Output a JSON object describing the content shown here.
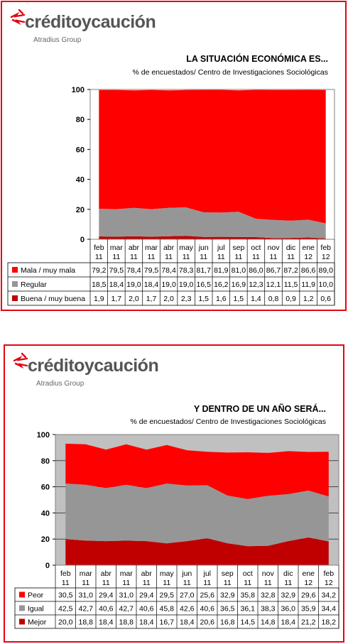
{
  "brand": {
    "name": "créditoycaución",
    "group": "Atradius Group",
    "colors": {
      "accent": "#e30613",
      "text": "#555555"
    }
  },
  "charts": [
    {
      "title": "LA SITUACIÓN ECONÓMICA ES...",
      "subtitle": "% de encuestados/ Centro de Investigaciones Sociológicas"
    },
    {
      "title": "Y DENTRO DE UN AÑO SERÁ...",
      "subtitle": "% de encuestados/ Centro de Investigaciones Sociológicas"
    }
  ],
  "chart_data": [
    {
      "type": "area",
      "stacked": true,
      "title": "LA SITUACIÓN ECONÓMICA ES...",
      "subtitle": "% de encuestados/ Centro de Investigaciones Sociológicas",
      "categories": [
        [
          "feb",
          "11"
        ],
        [
          "mar",
          "11"
        ],
        [
          "abr",
          "11"
        ],
        [
          "mar",
          "11"
        ],
        [
          "abr",
          "11"
        ],
        [
          "may",
          "11"
        ],
        [
          "jun",
          "11"
        ],
        [
          "jul",
          "11"
        ],
        [
          "sep",
          "11"
        ],
        [
          "oct",
          "11"
        ],
        [
          "nov",
          "11"
        ],
        [
          "dic",
          "11"
        ],
        [
          "ene",
          "12"
        ],
        [
          "feb",
          "12"
        ]
      ],
      "series": [
        {
          "name": "Mala / muy mala",
          "color": "#ff0000",
          "values": [
            79.2,
            79.5,
            78.4,
            79.5,
            78.4,
            78.3,
            81.7,
            81.9,
            81.0,
            86.0,
            86.7,
            87.2,
            86.6,
            89.0
          ],
          "labels": [
            "79,2",
            "79,5",
            "78,4",
            "79,5",
            "78,4",
            "78,3",
            "81,7",
            "81,9",
            "81,0",
            "86,0",
            "86,7",
            "87,2",
            "86,6",
            "89,0"
          ]
        },
        {
          "name": "Regular",
          "color": "#969696",
          "values": [
            18.5,
            18.4,
            19.0,
            18.4,
            19.0,
            19.0,
            16.5,
            16.2,
            16.9,
            12.3,
            12.1,
            11.5,
            11.9,
            10.0
          ],
          "labels": [
            "18,5",
            "18,4",
            "19,0",
            "18,4",
            "19,0",
            "19,0",
            "16,5",
            "16,2",
            "16,9",
            "12,3",
            "12,1",
            "11,5",
            "11,9",
            "10,0"
          ]
        },
        {
          "name": "Buena / muy buena",
          "color": "#c00000",
          "values": [
            1.9,
            1.7,
            2.0,
            1.7,
            2.0,
            2.3,
            1.5,
            1.6,
            1.5,
            1.4,
            0.8,
            0.9,
            1.2,
            0.6
          ],
          "labels": [
            "1,9",
            "1,7",
            "2,0",
            "1,7",
            "2,0",
            "2,3",
            "1,5",
            "1,6",
            "1,5",
            "1,4",
            "0,8",
            "0,9",
            "1,2",
            "0,6"
          ]
        }
      ],
      "ylim": [
        0,
        100
      ],
      "yticks": [
        0,
        20,
        40,
        60,
        80,
        100
      ],
      "ytick_labels": [
        "0",
        "20",
        "40",
        "60",
        "80",
        "100"
      ],
      "grid": false,
      "legend": "data-table"
    },
    {
      "type": "area",
      "stacked": true,
      "title": "Y DENTRO DE UN AÑO SERÁ...",
      "subtitle": "% de encuestados/ Centro de Investigaciones Sociológicas",
      "categories": [
        [
          "feb",
          "11"
        ],
        [
          "mar",
          "11"
        ],
        [
          "abr",
          "11"
        ],
        [
          "mar",
          "11"
        ],
        [
          "abr",
          "11"
        ],
        [
          "may",
          "11"
        ],
        [
          "jun",
          "11"
        ],
        [
          "jul",
          "11"
        ],
        [
          "sep",
          "11"
        ],
        [
          "oct",
          "11"
        ],
        [
          "nov",
          "11"
        ],
        [
          "dic",
          "11"
        ],
        [
          "ene",
          "12"
        ],
        [
          "feb",
          "12"
        ]
      ],
      "series": [
        {
          "name": "Peor",
          "color": "#ff0000",
          "values": [
            30.5,
            31.0,
            29.4,
            31.0,
            29.4,
            29.5,
            27.0,
            25.6,
            32.9,
            35.8,
            32.8,
            32.9,
            29.6,
            34.2
          ],
          "labels": [
            "30,5",
            "31,0",
            "29,4",
            "31,0",
            "29,4",
            "29,5",
            "27,0",
            "25,6",
            "32,9",
            "35,8",
            "32,8",
            "32,9",
            "29,6",
            "34,2"
          ]
        },
        {
          "name": "Igual",
          "color": "#969696",
          "values": [
            42.5,
            42.7,
            40.6,
            42.7,
            40.6,
            45.8,
            42.6,
            40.6,
            36.5,
            36.1,
            38.3,
            36.0,
            35.9,
            34.4
          ],
          "labels": [
            "42,5",
            "42,7",
            "40,6",
            "42,7",
            "40,6",
            "45,8",
            "42,6",
            "40,6",
            "36,5",
            "36,1",
            "38,3",
            "36,0",
            "35,9",
            "34,4"
          ]
        },
        {
          "name": "Mejor",
          "color": "#c00000",
          "values": [
            20.0,
            18.8,
            18.4,
            18.8,
            18.4,
            16.7,
            18.4,
            20.6,
            16.8,
            14.5,
            14.8,
            18.4,
            21.2,
            18.2
          ],
          "labels": [
            "20,0",
            "18,8",
            "18,4",
            "18,8",
            "18,4",
            "16,7",
            "18,4",
            "20,6",
            "16,8",
            "14,5",
            "14,8",
            "18,4",
            "21,2",
            "18,2"
          ]
        }
      ],
      "ylim": [
        0,
        100
      ],
      "yticks": [
        0,
        20,
        40,
        60,
        80,
        100
      ],
      "ytick_labels": [
        "0",
        "20",
        "40",
        "60",
        "80",
        "100"
      ],
      "grid": true,
      "legend": "data-table"
    }
  ]
}
